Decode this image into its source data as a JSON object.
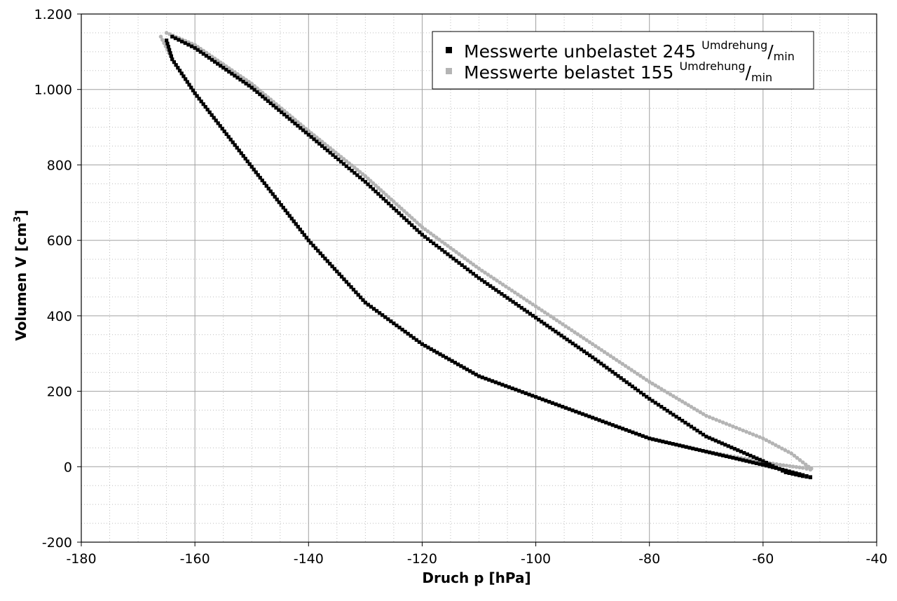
{
  "chart_data": {
    "type": "scatter",
    "title": "",
    "xlabel": "Druch p [hPa]",
    "ylabel_main": "Volumen V [cm",
    "ylabel_sup": "3",
    "ylabel_end": "]",
    "xlim": [
      -180,
      -40
    ],
    "ylim": [
      -200,
      1200
    ],
    "xticks": [
      -180,
      -160,
      -140,
      -120,
      -100,
      -80,
      -60,
      -40
    ],
    "yticks": [
      -200,
      0,
      200,
      400,
      600,
      800,
      1000,
      1200
    ],
    "xtick_labels": [
      "-180",
      "-160",
      "-140",
      "-120",
      "-100",
      "-80",
      "-60",
      "-40"
    ],
    "ytick_labels": [
      "-200",
      "0",
      "200",
      "400",
      "600",
      "800",
      "1.000",
      "1.200"
    ],
    "grid": true,
    "legend_position": "top-right",
    "series": [
      {
        "name": "Messwerte unbelastet 245",
        "unit_num": "Umdrehung",
        "unit_den": "min",
        "color": "#000000",
        "upper_branch": [
          [
            -164,
            1140
          ],
          [
            -160,
            1110
          ],
          [
            -150,
            1005
          ],
          [
            -140,
            880
          ],
          [
            -130,
            755
          ],
          [
            -120,
            615
          ],
          [
            -110,
            500
          ],
          [
            -100,
            395
          ],
          [
            -90,
            290
          ],
          [
            -80,
            180
          ],
          [
            -70,
            80
          ],
          [
            -60,
            15
          ],
          [
            -56,
            -15
          ],
          [
            -53,
            -25
          ],
          [
            -51,
            -30
          ]
        ],
        "lower_branch": [
          [
            -165,
            1130
          ],
          [
            -164,
            1080
          ],
          [
            -160,
            990
          ],
          [
            -150,
            795
          ],
          [
            -140,
            600
          ],
          [
            -130,
            435
          ],
          [
            -120,
            325
          ],
          [
            -110,
            240
          ],
          [
            -100,
            185
          ],
          [
            -90,
            130
          ],
          [
            -80,
            75
          ],
          [
            -70,
            40
          ],
          [
            -60,
            5
          ],
          [
            -56,
            -10
          ],
          [
            -53,
            -22
          ],
          [
            -51,
            -30
          ]
        ]
      },
      {
        "name": "Messwerte belastet 155",
        "unit_num": "Umdrehung",
        "unit_den": "min",
        "color": "#b4b4b4",
        "upper_branch": [
          [
            -165,
            1150
          ],
          [
            -160,
            1118
          ],
          [
            -150,
            1015
          ],
          [
            -140,
            890
          ],
          [
            -130,
            770
          ],
          [
            -120,
            635
          ],
          [
            -110,
            525
          ],
          [
            -100,
            425
          ],
          [
            -90,
            325
          ],
          [
            -80,
            225
          ],
          [
            -70,
            135
          ],
          [
            -60,
            75
          ],
          [
            -55,
            35
          ],
          [
            -52,
            0
          ],
          [
            -51,
            -10
          ]
        ],
        "lower_branch": [
          [
            -166,
            1140
          ],
          [
            -164,
            1080
          ],
          [
            -160,
            990
          ],
          [
            -150,
            795
          ],
          [
            -140,
            600
          ],
          [
            -130,
            435
          ],
          [
            -120,
            325
          ],
          [
            -110,
            240
          ],
          [
            -100,
            185
          ],
          [
            -90,
            130
          ],
          [
            -80,
            75
          ],
          [
            -70,
            40
          ],
          [
            -62,
            18
          ],
          [
            -57,
            5
          ],
          [
            -53,
            -3
          ],
          [
            -51,
            -10
          ]
        ]
      }
    ]
  }
}
